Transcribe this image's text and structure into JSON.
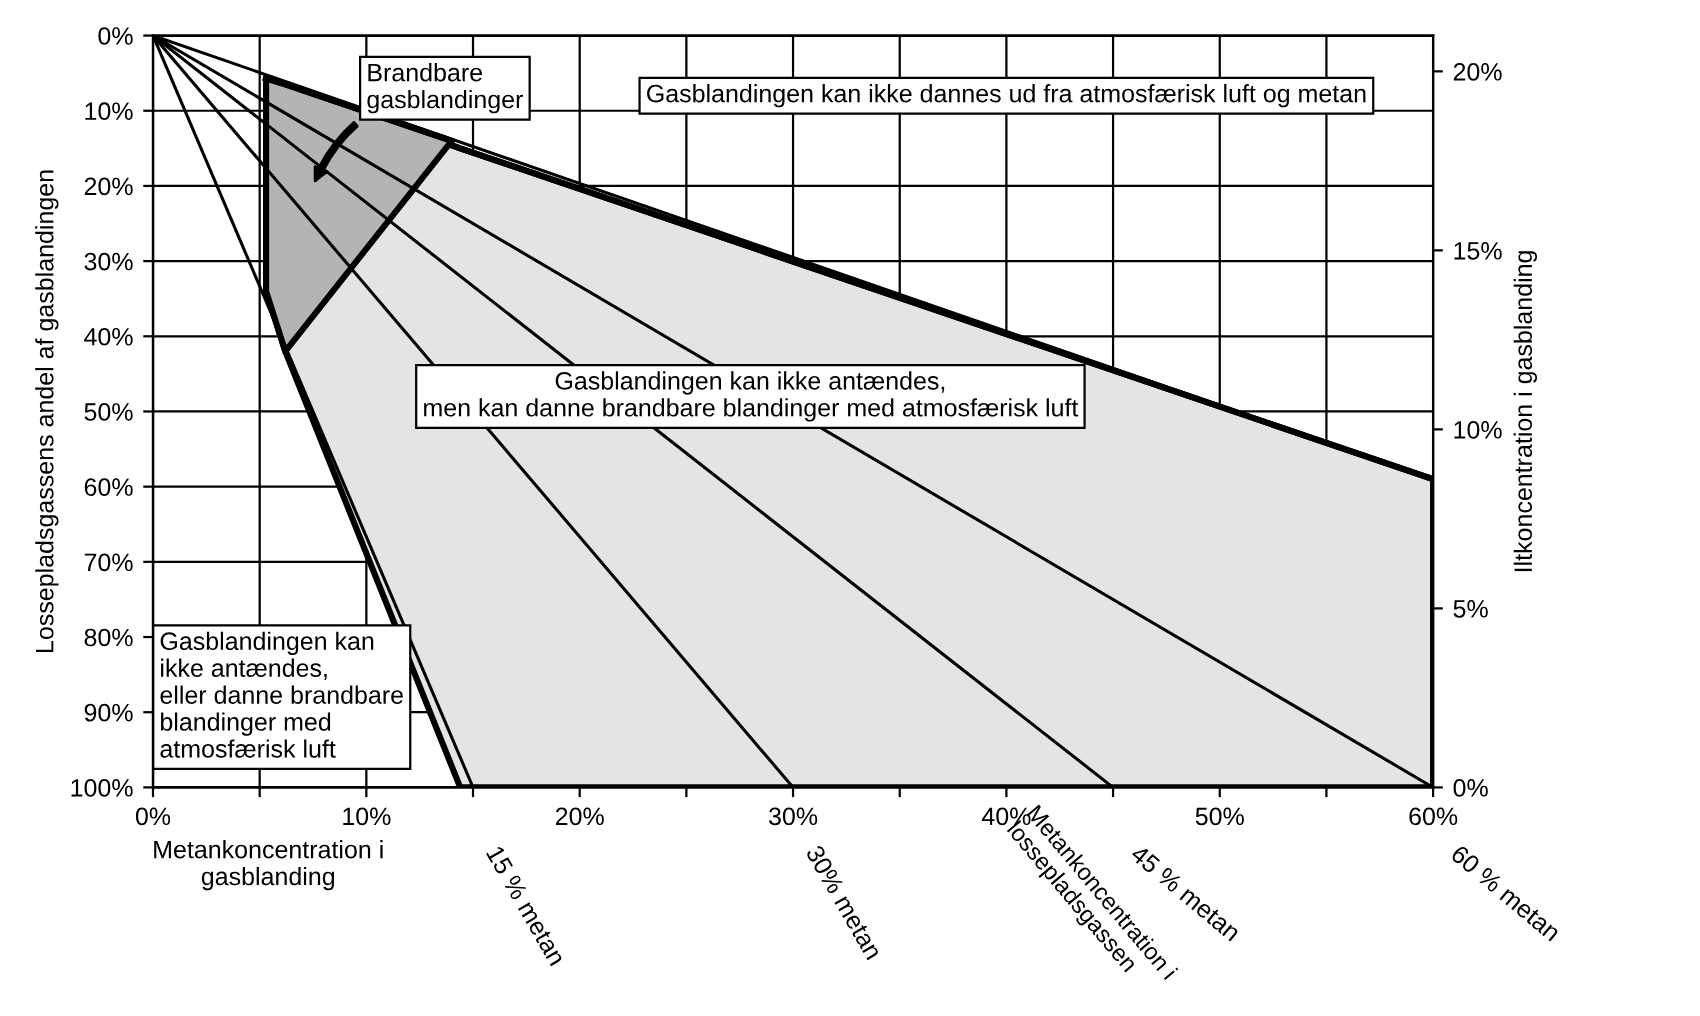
{
  "chart_data": {
    "type": "line",
    "xlabel": "Metankoncentration i\ngasblanding",
    "ylabel": "Lossepladsgassens andel af gasblandingen",
    "y2label": "Iltkoncentration i gasblanding",
    "xlim": [
      0,
      60
    ],
    "ylim": [
      100,
      0
    ],
    "y2lim": [
      0,
      21
    ],
    "xticks": [
      {
        "value": 0,
        "label": "0%"
      },
      {
        "value": 5,
        "label": null
      },
      {
        "value": 10,
        "label": "10%"
      },
      {
        "value": 15,
        "label": null
      },
      {
        "value": 20,
        "label": "20%"
      },
      {
        "value": 25,
        "label": null
      },
      {
        "value": 30,
        "label": "30%"
      },
      {
        "value": 35,
        "label": null
      },
      {
        "value": 40,
        "label": "40%"
      },
      {
        "value": 45,
        "label": null
      },
      {
        "value": 50,
        "label": "50%"
      },
      {
        "value": 55,
        "label": null
      },
      {
        "value": 60,
        "label": "60%"
      }
    ],
    "yticks": [
      {
        "value": 0,
        "label": "0%"
      },
      {
        "value": 10,
        "label": "10%"
      },
      {
        "value": 20,
        "label": "20%"
      },
      {
        "value": 30,
        "label": "30%"
      },
      {
        "value": 40,
        "label": "40%"
      },
      {
        "value": 50,
        "label": "50%"
      },
      {
        "value": 60,
        "label": "60%"
      },
      {
        "value": 70,
        "label": "70%"
      },
      {
        "value": 80,
        "label": "80%"
      },
      {
        "value": 90,
        "label": "90%"
      },
      {
        "value": 100,
        "label": "100%"
      }
    ],
    "y2ticks": [
      {
        "value": 0,
        "label": "0%"
      },
      {
        "value": 5,
        "label": "5%"
      },
      {
        "value": 10,
        "label": "10%"
      },
      {
        "value": 15,
        "label": "15%"
      },
      {
        "value": 20,
        "label": "20%"
      }
    ],
    "grid": true,
    "legend": false,
    "series": [
      {
        "color": "#000000",
        "colors": [
          "#e4e4e4",
          "#e4e4e4",
          "#e4e4e4",
          "#e4e4e4"
        ],
        "x": [
          5.3,
          6.2,
          14.4,
          60
        ],
        "values": [
          5.7,
          6.5,
          15,
          59
        ],
        "lower": [
          5.7,
          6.5,
          15,
          59
        ],
        "upper": [
          34,
          42,
          100,
          100
        ]
      },
      {
        "color": "#000000",
        "colors": [
          "#b4b4b4",
          "#b4b4b4",
          "#b4b4b4"
        ],
        "x": [
          5.3,
          6.2,
          14
        ],
        "values": [
          5.7,
          6.5,
          14
        ],
        "lower": [
          5.7,
          6.5,
          14
        ],
        "upper": [
          34,
          42,
          14
        ]
      },
      {
        "color": "#000000",
        "x": [
          0,
          60
        ],
        "values": [
          0,
          59
        ]
      },
      {
        "name": "15 % metan",
        "color": "#000000",
        "x": [
          0,
          15
        ],
        "values": [
          0,
          100
        ]
      },
      {
        "name": "30% metan",
        "color": "#000000",
        "x": [
          0,
          30
        ],
        "values": [
          0,
          100
        ]
      },
      {
        "name": "45 % metan",
        "color": "#000000",
        "x": [
          0,
          45
        ],
        "values": [
          0,
          100
        ]
      },
      {
        "name": "60 % metan",
        "color": "#000000",
        "x": [
          0,
          60
        ],
        "values": [
          0,
          100
        ]
      }
    ],
    "annotations": [
      "Brandbare\ngasblandinger",
      "Gasblandingen kan ikke dannes ud fra atmosfærisk luft og metan",
      {
        "text": "Gasblandingen kan ikke antændes,\nmen kan danne brandbare blandinger med atmosfærisk luft",
        "x": 28,
        "y": 48
      },
      "Gasblandingen kan\nikke antændes,\neller danne brandbare\nblandinger med\natmosfærisk luft",
      "Metankoncentration i\nlossepladsgassen"
    ]
  }
}
